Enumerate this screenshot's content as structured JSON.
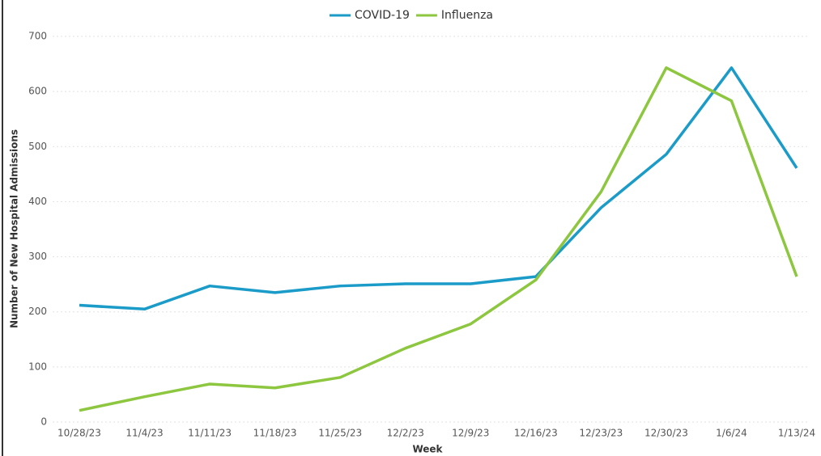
{
  "chart_data": {
    "type": "line",
    "xlabel": "Week",
    "ylabel": "Number of New Hospital Admissions",
    "categories": [
      "10/28/23",
      "11/4/23",
      "11/11/23",
      "11/18/23",
      "11/25/23",
      "12/2/23",
      "12/9/23",
      "12/16/23",
      "12/23/23",
      "12/30/23",
      "1/6/24",
      "1/13/24"
    ],
    "series": [
      {
        "name": "COVID-19",
        "color": "#1b9bc8",
        "values": [
          212,
          205,
          247,
          235,
          247,
          251,
          251,
          264,
          389,
          486,
          643,
          461
        ]
      },
      {
        "name": "Influenza",
        "color": "#8dc63f",
        "values": [
          21,
          46,
          69,
          62,
          81,
          134,
          178,
          258,
          418,
          643,
          583,
          264
        ]
      }
    ],
    "ylim": [
      0,
      700
    ],
    "yticks": [
      0,
      100,
      200,
      300,
      400,
      500,
      600,
      700
    ],
    "grid": true,
    "legend": "top"
  }
}
